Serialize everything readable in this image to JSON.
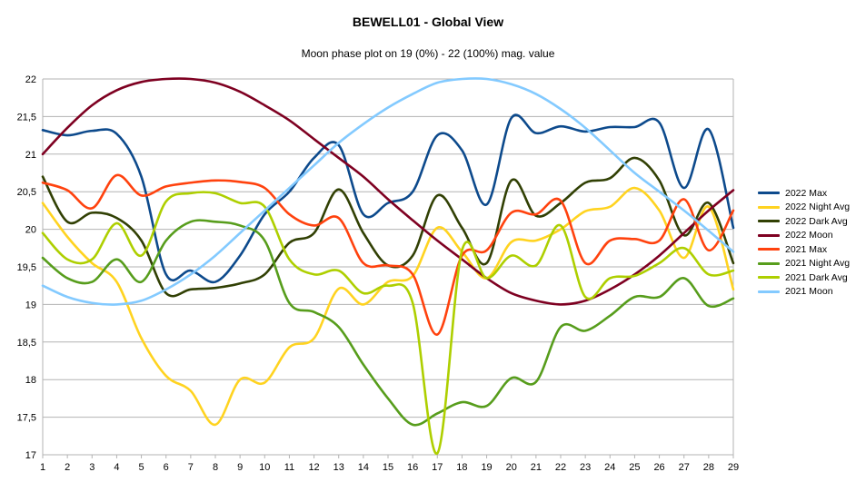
{
  "chart_data": {
    "type": "line",
    "title": "BEWELL01 - Global View",
    "subtitle": "Moon phase plot on 19 (0%) - 22 (100%) mag. value",
    "xlabel": "",
    "ylabel": "",
    "x": [
      1,
      2,
      3,
      4,
      5,
      6,
      7,
      8,
      9,
      10,
      11,
      12,
      13,
      14,
      15,
      16,
      17,
      18,
      19,
      20,
      21,
      22,
      23,
      24,
      25,
      26,
      27,
      28,
      29
    ],
    "ylim": [
      17,
      22
    ],
    "yticks": [
      "22",
      "21,5",
      "21",
      "20,5",
      "20",
      "19,5",
      "19",
      "18,5",
      "18",
      "17,5",
      "17"
    ],
    "xticks": [
      "1",
      "2",
      "3",
      "4",
      "5",
      "6",
      "7",
      "8",
      "9",
      "10",
      "11",
      "12",
      "13",
      "14",
      "15",
      "16",
      "17",
      "18",
      "19",
      "20",
      "21",
      "22",
      "23",
      "24",
      "25",
      "26",
      "27",
      "28",
      "29"
    ],
    "grid": "horizontal",
    "legend_position": "right",
    "series": [
      {
        "name": "2022 Max",
        "color": "#0d4a8c",
        "values": [
          21.32,
          21.25,
          21.31,
          21.27,
          20.7,
          19.4,
          19.45,
          19.3,
          19.65,
          20.2,
          20.5,
          20.95,
          21.12,
          20.2,
          20.35,
          20.5,
          21.25,
          21.05,
          20.33,
          21.48,
          21.28,
          21.37,
          21.3,
          21.36,
          21.36,
          21.42,
          20.55,
          21.33,
          20.02
        ]
      },
      {
        "name": "2022 Night Avg",
        "color": "#ffd320",
        "values": [
          20.35,
          19.9,
          19.55,
          19.3,
          18.55,
          18.05,
          17.85,
          17.4,
          18.0,
          17.96,
          18.43,
          18.55,
          19.21,
          19.0,
          19.3,
          19.38,
          20.02,
          19.7,
          19.35,
          19.83,
          19.85,
          20.0,
          20.24,
          20.3,
          20.55,
          20.25,
          19.62,
          20.3,
          19.2
        ]
      },
      {
        "name": "2022 Dark Avg",
        "color": "#314004",
        "values": [
          20.7,
          20.1,
          20.22,
          20.15,
          19.85,
          19.15,
          19.2,
          19.22,
          19.28,
          19.4,
          19.82,
          19.95,
          20.53,
          19.95,
          19.52,
          19.65,
          20.45,
          20.02,
          19.55,
          20.65,
          20.18,
          20.35,
          20.62,
          20.68,
          20.95,
          20.65,
          19.92,
          20.35,
          19.55
        ]
      },
      {
        "name": "2022 Moon",
        "color": "#7e0021",
        "values": [
          21.0,
          21.35,
          21.65,
          21.85,
          21.96,
          22.0,
          22.0,
          21.95,
          21.83,
          21.65,
          21.45,
          21.2,
          20.95,
          20.7,
          20.4,
          20.12,
          19.85,
          19.6,
          19.35,
          19.15,
          19.05,
          19.0,
          19.05,
          19.2,
          19.4,
          19.65,
          19.95,
          20.25,
          20.52
        ]
      },
      {
        "name": "2021 Max",
        "color": "#ff420e",
        "values": [
          20.62,
          20.52,
          20.28,
          20.72,
          20.45,
          20.57,
          20.62,
          20.65,
          20.63,
          20.55,
          20.2,
          20.05,
          20.15,
          19.55,
          19.52,
          19.4,
          18.6,
          19.65,
          19.72,
          20.22,
          20.2,
          20.38,
          19.55,
          19.85,
          19.87,
          19.85,
          20.4,
          19.72,
          20.25
        ]
      },
      {
        "name": "2021 Night Avg",
        "color": "#579d1c",
        "values": [
          19.62,
          19.35,
          19.3,
          19.6,
          19.3,
          19.85,
          20.1,
          20.1,
          20.05,
          19.85,
          19.02,
          18.9,
          18.7,
          18.2,
          17.75,
          17.4,
          17.55,
          17.7,
          17.65,
          18.02,
          17.97,
          18.7,
          18.65,
          18.85,
          19.1,
          19.1,
          19.35,
          18.98,
          19.08
        ]
      },
      {
        "name": "2021 Dark Avg",
        "color": "#aecf00",
        "values": [
          19.95,
          19.6,
          19.6,
          20.08,
          19.65,
          20.37,
          20.48,
          20.48,
          20.35,
          20.3,
          19.6,
          19.4,
          19.45,
          19.15,
          19.25,
          19.02,
          17.02,
          19.72,
          19.35,
          19.65,
          19.52,
          20.05,
          19.1,
          19.35,
          19.38,
          19.55,
          19.75,
          19.4,
          19.45
        ]
      },
      {
        "name": "2021 Moon",
        "color": "#83caff",
        "values": [
          19.25,
          19.1,
          19.02,
          19.0,
          19.05,
          19.2,
          19.4,
          19.65,
          19.95,
          20.25,
          20.55,
          20.85,
          21.15,
          21.4,
          21.62,
          21.8,
          21.95,
          22.0,
          22.0,
          21.93,
          21.8,
          21.6,
          21.35,
          21.05,
          20.75,
          20.5,
          20.25,
          19.98,
          19.7
        ]
      }
    ]
  }
}
